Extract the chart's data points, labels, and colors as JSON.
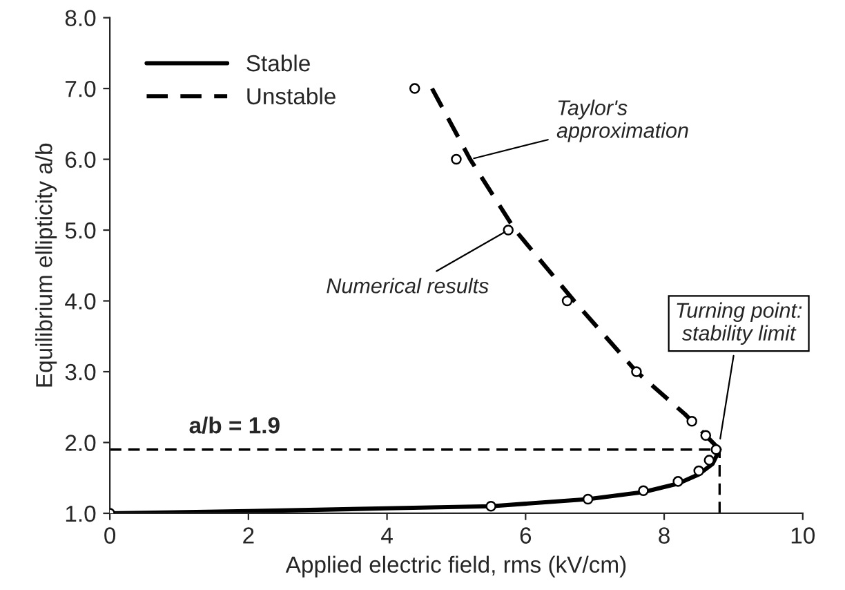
{
  "chart_data": {
    "type": "line",
    "xlabel": "Applied electric field, rms (kV/cm)",
    "ylabel": "Equilibrium ellipticity a/b",
    "xlim": [
      0,
      10
    ],
    "ylim": [
      1.0,
      8.0
    ],
    "xticks": [
      0,
      2,
      4,
      6,
      8,
      10
    ],
    "yticks": [
      {
        "value": 1,
        "label": "1.0"
      },
      {
        "value": 2,
        "label": "2.0"
      },
      {
        "value": 3,
        "label": "3.0"
      },
      {
        "value": 4,
        "label": "4.0"
      },
      {
        "value": 5,
        "label": "5.0"
      },
      {
        "value": 6,
        "label": "6.0"
      },
      {
        "value": 7,
        "label": "7.0"
      },
      {
        "value": 8,
        "label": "8.0"
      }
    ],
    "grid": false,
    "legend": "top left",
    "series": [
      {
        "name": "Stable",
        "line_style": "solid",
        "color": "#000000",
        "x": [
          0,
          2,
          4,
          5.5,
          6.9,
          7.7,
          8.2,
          8.5,
          8.7,
          8.8
        ],
        "values": [
          1.0,
          1.03,
          1.07,
          1.1,
          1.2,
          1.3,
          1.42,
          1.55,
          1.7,
          1.9
        ]
      },
      {
        "name": "Unstable",
        "line_style": "dashed",
        "color": "#000000",
        "x": [
          4.65,
          5.2,
          5.85,
          6.7,
          7.6,
          8.3,
          8.7,
          8.8
        ],
        "values": [
          7.0,
          6.0,
          5.0,
          4.0,
          3.0,
          2.4,
          2.0,
          1.9
        ]
      },
      {
        "type": "scatter",
        "marker": "circle",
        "color": "#000000",
        "x": [
          0,
          5.5,
          6.9,
          7.7,
          8.2,
          8.5,
          8.65
        ],
        "values": [
          1.0,
          1.1,
          1.2,
          1.32,
          1.45,
          1.6,
          1.75
        ]
      },
      {
        "type": "scatter",
        "marker": "circle",
        "color": "#000000",
        "x": [
          4.4,
          5.0,
          5.75,
          6.6,
          7.6,
          8.4,
          8.6,
          8.75
        ],
        "values": [
          7.0,
          6.0,
          5.0,
          4.0,
          3.0,
          2.3,
          2.1,
          1.9
        ]
      },
      {
        "line_style": "dashed",
        "color": "#000000",
        "x": [
          0,
          8.8
        ],
        "values": [
          1.9,
          1.9
        ]
      },
      {
        "line_style": "dashed",
        "color": "#000000",
        "x": [
          8.8,
          8.8
        ],
        "values": [
          1.0,
          1.9
        ]
      }
    ],
    "annotations": [
      {
        "text": "Taylor's\napproximation",
        "x": 5.2,
        "y": 6.0
      },
      {
        "text": "Numerical results",
        "x": 5.75,
        "y": 5.0
      },
      {
        "text": "Turning point:\nstability limit",
        "x": 8.8,
        "y": 2.0
      },
      {
        "text": "a/b = 1.9",
        "x": 1.8,
        "y": 1.9
      }
    ]
  }
}
